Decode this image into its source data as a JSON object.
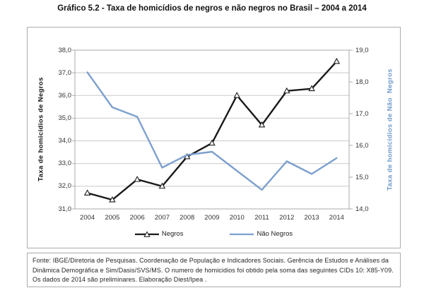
{
  "page": {
    "title": "Gráfico 5.2 - Taxa de homicídios de negros e não negros no Brasil – 2004 a 2014"
  },
  "chart_data": {
    "type": "line",
    "title": "Gráfico 5.2 - Taxa de homicídios de negros e não negros no Brasil – 2004 a 2014",
    "categories": [
      "2004",
      "2005",
      "2006",
      "2007",
      "2008",
      "2009",
      "2010",
      "2011",
      "2012",
      "2013",
      "2014"
    ],
    "series": [
      {
        "name": "Negros",
        "axis": "left",
        "color": "#1a1a1a",
        "marker": "triangle",
        "values": [
          31.7,
          31.4,
          32.3,
          32.0,
          33.3,
          33.9,
          36.0,
          34.7,
          36.2,
          36.3,
          37.5
        ]
      },
      {
        "name": "Não Negros",
        "axis": "right",
        "color": "#7da0ce",
        "marker": "none",
        "values": [
          18.3,
          17.2,
          16.9,
          15.3,
          15.7,
          15.8,
          15.2,
          14.6,
          15.5,
          15.1,
          15.6
        ]
      }
    ],
    "left_axis": {
      "label": "Taxa de homicídios de Negros",
      "min": 31,
      "max": 38,
      "step": 1,
      "tick_labels": [
        "38,0",
        "37,0",
        "36,0",
        "35,0",
        "34,0",
        "33,0",
        "32,0",
        "31,0"
      ]
    },
    "right_axis": {
      "label": "Taxa de homicídios de Não  Negros",
      "min": 14,
      "max": 19,
      "step": 1,
      "tick_labels": [
        "19,0",
        "18,0",
        "17,0",
        "16,0",
        "15,0",
        "14,0"
      ]
    },
    "grid": true,
    "legend_position": "bottom"
  },
  "footer": {
    "source": "Fonte: IBGE/Diretoria de Pesquisas. Coordenação de População e Indicadores Sociais. Gerência de Estudos e Análises da Dinâmica Demográfica e Sim/Dasis/SVS/MS. O numero de homicidios foi obtido pela soma das seguintes CIDs 10: X85-Y09.  Os dados de 2014  são preliminares. Elaboração Diest/Ipea ."
  },
  "colors": {
    "grid": "#c9c9c9",
    "box_border": "#ababab",
    "tick_text": "#333333",
    "right_axis_label_blue": "#6f9ac9"
  }
}
